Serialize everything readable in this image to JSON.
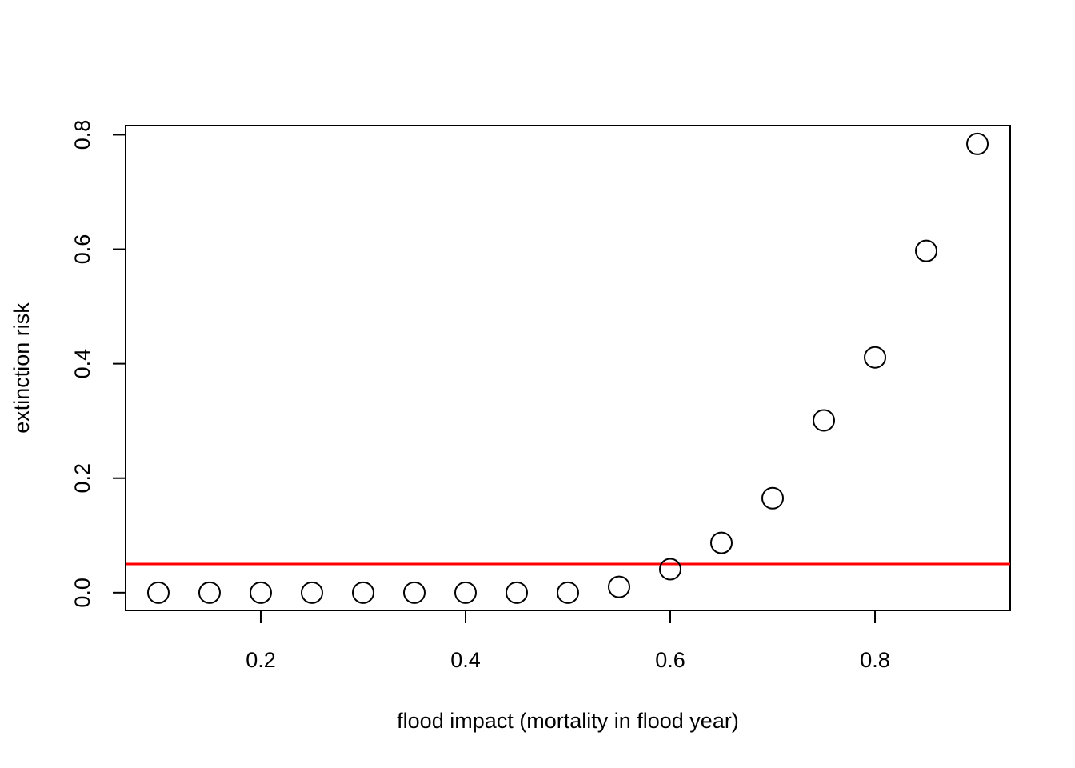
{
  "chart_data": {
    "type": "scatter",
    "title": "",
    "xlabel": "flood impact (mortality in flood year)",
    "ylabel": "extinction risk",
    "xlim": [
      0.068,
      0.932
    ],
    "ylim": [
      -0.031,
      0.816
    ],
    "xticks": [
      0.2,
      0.4,
      0.6,
      0.8
    ],
    "xtick_labels": [
      "0.2",
      "0.4",
      "0.6",
      "0.8"
    ],
    "yticks": [
      0.0,
      0.2,
      0.4,
      0.6,
      0.8
    ],
    "ytick_labels": [
      "0.0",
      "0.2",
      "0.4",
      "0.6",
      "0.8"
    ],
    "grid": false,
    "series": [
      {
        "marker": "open-circle",
        "color": "#000000",
        "x": [
          0.1,
          0.15,
          0.2,
          0.25,
          0.3,
          0.35,
          0.4,
          0.45,
          0.5,
          0.55,
          0.6,
          0.65,
          0.7,
          0.75,
          0.8,
          0.85,
          0.9
        ],
        "y": [
          0.0,
          0.0,
          0.0,
          0.0,
          0.0,
          0.0,
          0.0,
          0.0,
          0.0,
          0.01,
          0.041,
          0.087,
          0.165,
          0.301,
          0.411,
          0.597,
          0.784
        ]
      }
    ],
    "reference_lines": [
      {
        "orientation": "horizontal",
        "y": 0.05,
        "color": "#ff0000"
      }
    ]
  }
}
